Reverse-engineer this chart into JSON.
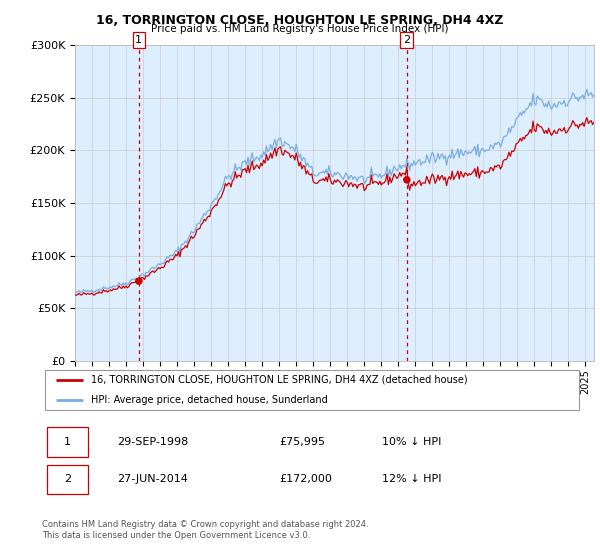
{
  "title": "16, TORRINGTON CLOSE, HOUGHTON LE SPRING, DH4 4XZ",
  "subtitle": "Price paid vs. HM Land Registry's House Price Index (HPI)",
  "legend_line1": "16, TORRINGTON CLOSE, HOUGHTON LE SPRING, DH4 4XZ (detached house)",
  "legend_line2": "HPI: Average price, detached house, Sunderland",
  "footnote1": "Contains HM Land Registry data © Crown copyright and database right 2024.",
  "footnote2": "This data is licensed under the Open Government Licence v3.0.",
  "annotation1_date": "29-SEP-1998",
  "annotation1_price": "£75,995",
  "annotation1_hpi": "10% ↓ HPI",
  "annotation2_date": "27-JUN-2014",
  "annotation2_price": "£172,000",
  "annotation2_hpi": "12% ↓ HPI",
  "sale1_year": 1998.75,
  "sale1_price": 75995,
  "sale2_year": 2014.5,
  "sale2_price": 172000,
  "hpi_color": "#7aade0",
  "sale_color": "#cc0000",
  "vline_color": "#cc0000",
  "bg_fill_color": "#ddeeff",
  "background_color": "#ffffff",
  "grid_color": "#cccccc",
  "ylim": [
    0,
    300000
  ],
  "xlim_start": 1995.0,
  "xlim_end": 2025.5
}
